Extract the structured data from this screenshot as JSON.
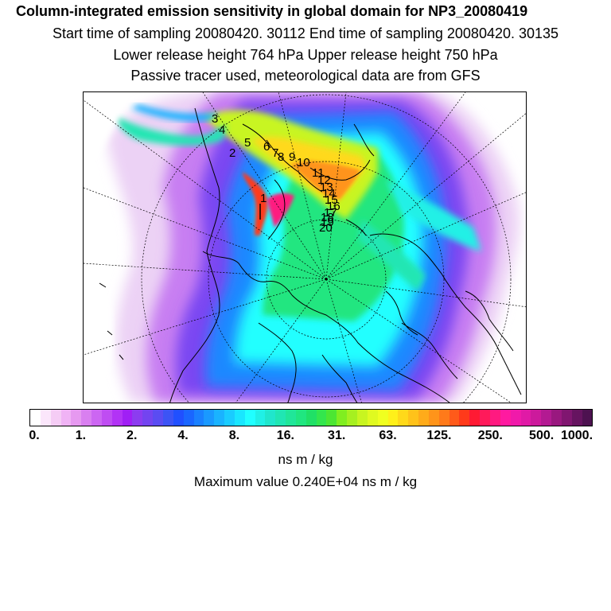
{
  "header": {
    "title": "Column-integrated emission sensitivity in global domain for NP3_20080419",
    "sampling": "Start time of sampling 20080420. 30112     End time of sampling 20080420. 30135",
    "release": "Lower release height  764 hPa        Upper release height  750 hPa",
    "note": "Passive tracer used, meteorological data are from GFS"
  },
  "map": {
    "trajectory_labels": [
      "1",
      "2",
      "3",
      "4",
      "5",
      "6",
      "7",
      "8",
      "9",
      "10",
      "11",
      "12",
      "13",
      "14",
      "15",
      "16",
      "17",
      "18",
      "19",
      "20"
    ]
  },
  "colorbar": {
    "colors": [
      "#ffffff",
      "#fbe6fb",
      "#f5ccf5",
      "#f0b3f5",
      "#e699f0",
      "#d97ff0",
      "#cc66f2",
      "#bf4df2",
      "#b233f5",
      "#a01ff5",
      "#8c3cf0",
      "#7344f0",
      "#5a4cf2",
      "#3c54f5",
      "#2050ff",
      "#1a66ff",
      "#1a80ff",
      "#1a99ff",
      "#1ab3ff",
      "#1accff",
      "#1ae6ff",
      "#20ffff",
      "#20f0e6",
      "#20e6cc",
      "#20e6b3",
      "#20e699",
      "#20e680",
      "#20e066",
      "#33e64d",
      "#4ce633",
      "#80ee20",
      "#a6f020",
      "#c8f520",
      "#e0fa20",
      "#f0ff20",
      "#fff01a",
      "#ffd91a",
      "#ffc21a",
      "#ffab1a",
      "#ff941a",
      "#ff7a1a",
      "#ff5a1a",
      "#ff3a1a",
      "#ff1a33",
      "#ff1a5a",
      "#ff1a80",
      "#ff1aa0",
      "#f01aaa",
      "#e01aa6",
      "#cc1a9c",
      "#b31a92",
      "#99187f",
      "#801670",
      "#661460",
      "#4d1250"
    ],
    "tick_labels": [
      "0.",
      "1.",
      "2.",
      "4.",
      "8.",
      "16.",
      "31.",
      "63.",
      "125.",
      "250.",
      "500.",
      "1000."
    ],
    "units": "ns m / kg",
    "max_value": "Maximum value  0.240E+04 ns m / kg"
  }
}
